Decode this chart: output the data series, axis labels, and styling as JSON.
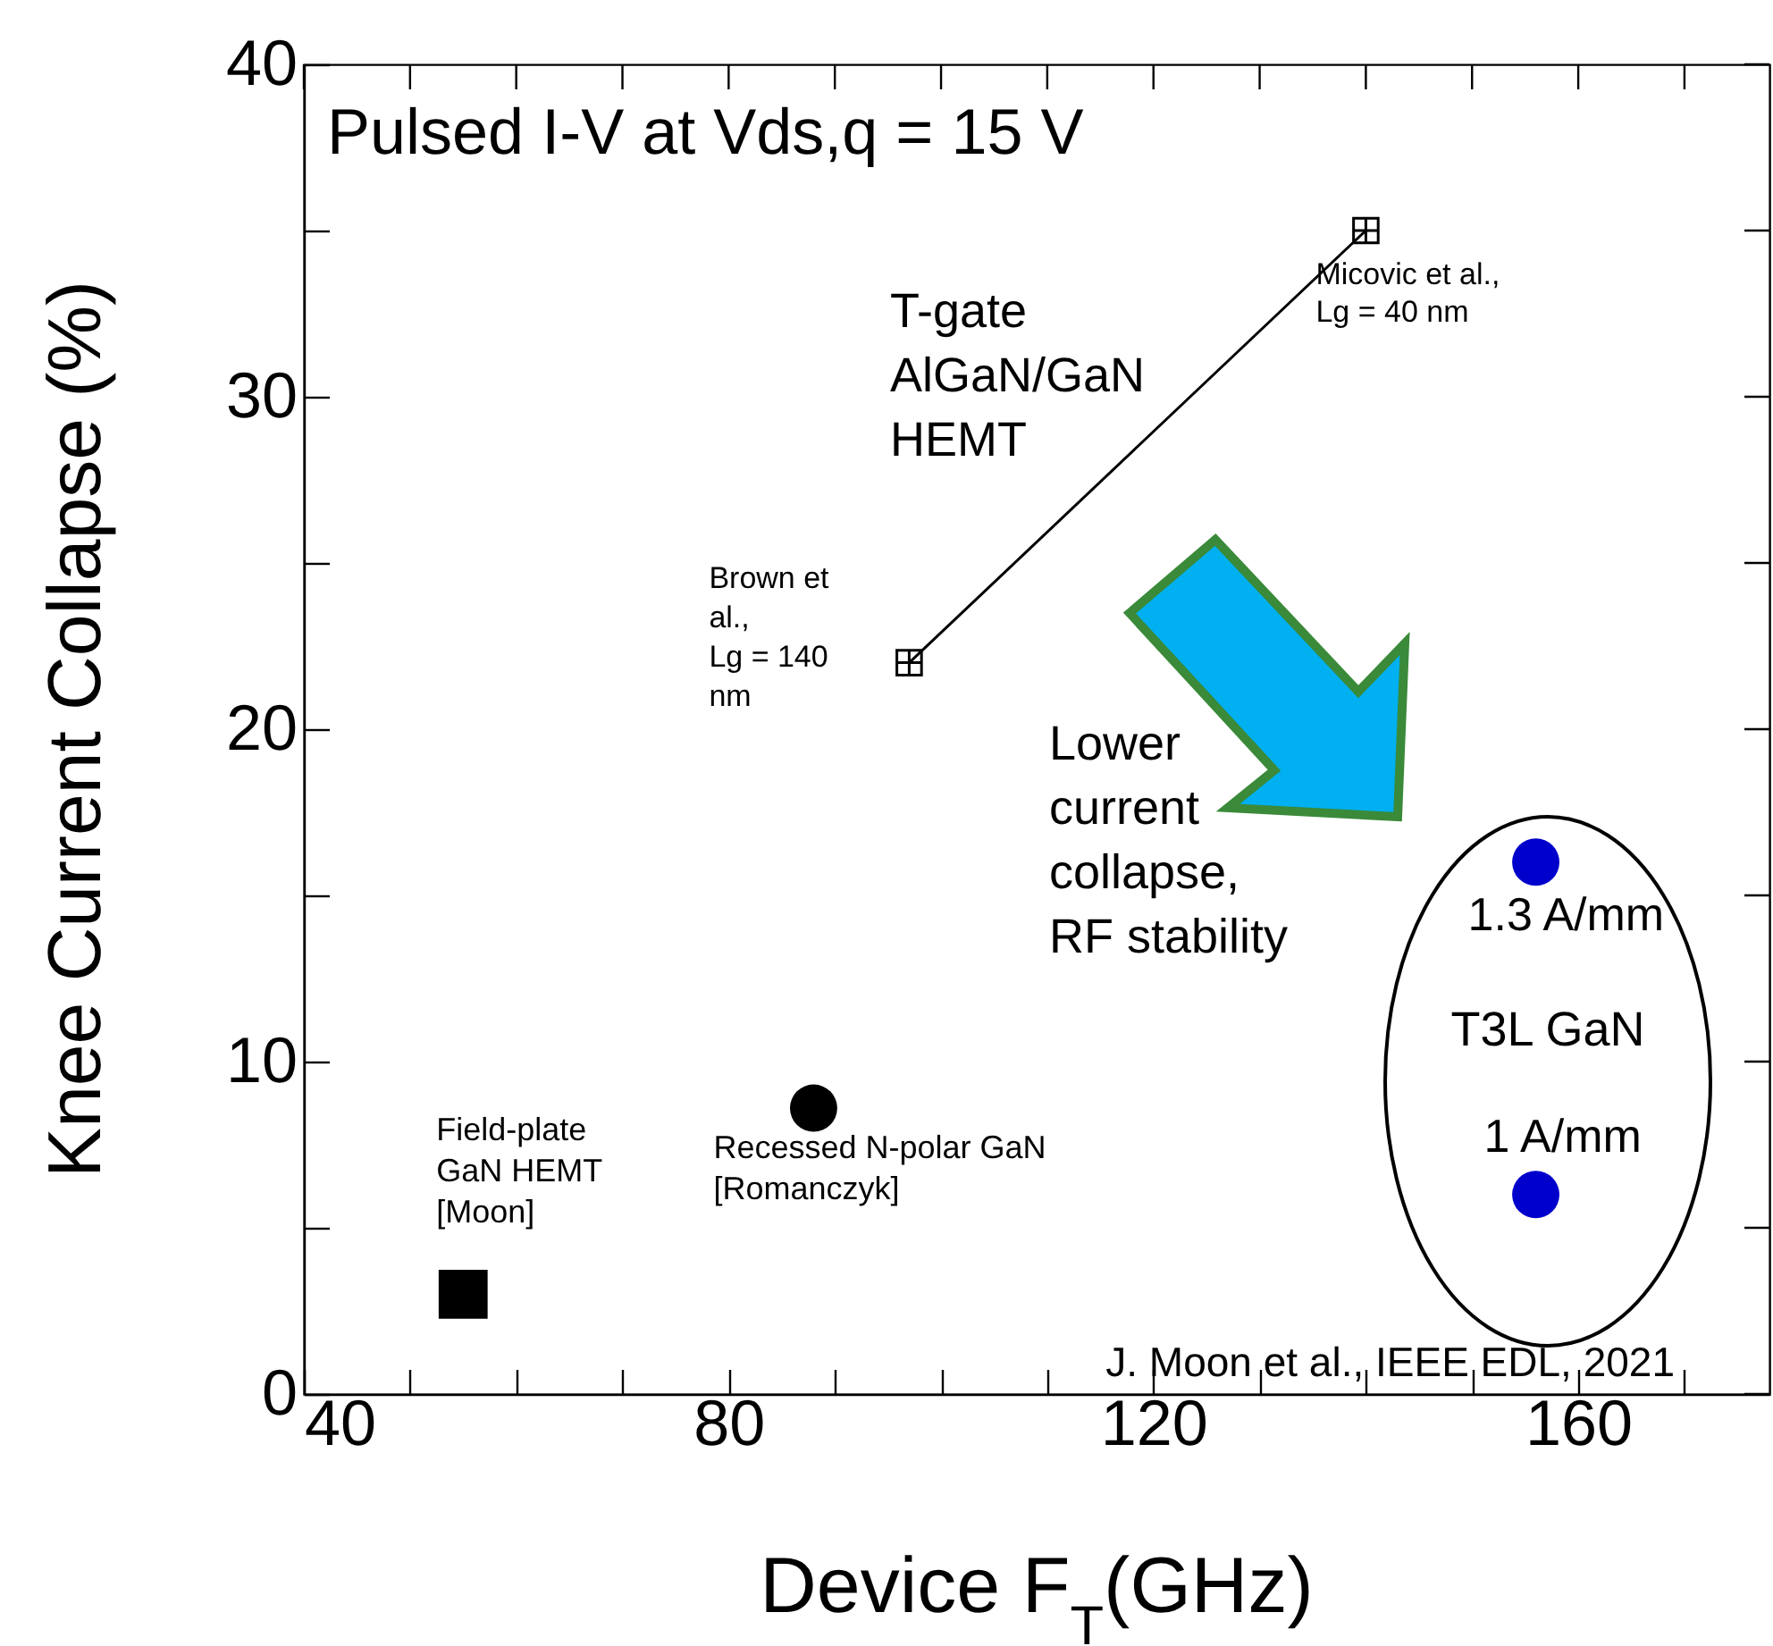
{
  "chart_data": {
    "type": "scatter",
    "xlabel": "Device F$_{T}$(GHz)",
    "ylabel": "Knee Current Collapse (%)",
    "xlim": [
      40,
      178
    ],
    "ylim": [
      0,
      40
    ],
    "xticks": [
      40,
      {
        "value": 50,
        "label": null
      },
      {
        "value": 60,
        "label": null
      },
      {
        "value": 70,
        "label": null
      },
      80,
      {
        "value": 90,
        "label": null
      },
      {
        "value": 100,
        "label": null
      },
      {
        "value": 110,
        "label": null
      },
      120,
      {
        "value": 130,
        "label": null
      },
      {
        "value": 140,
        "label": null
      },
      {
        "value": 150,
        "label": null
      },
      160,
      {
        "value": 170,
        "label": null
      }
    ],
    "yticks": [
      0,
      {
        "value": 5,
        "label": null
      },
      10,
      {
        "value": 15,
        "label": null
      },
      20,
      {
        "value": 25,
        "label": null
      },
      30,
      {
        "value": 35,
        "label": null
      },
      40
    ],
    "grid": false,
    "series": [
      {
        "marker": "square",
        "color": "#000000",
        "x": [
          55
        ],
        "values": [
          3
        ]
      },
      {
        "marker": "circle",
        "color": "#000000",
        "x": [
          88
        ],
        "values": [
          8.6
        ]
      },
      {
        "marker": "cross",
        "color": "#000000",
        "x": [
          97
        ],
        "values": [
          22
        ]
      },
      {
        "marker": "cross",
        "color": "#000000",
        "x": [
          140
        ],
        "values": [
          35
        ]
      },
      {
        "type": "line",
        "marker": "none",
        "color": "#000000",
        "x": [
          97,
          140
        ],
        "values": [
          22,
          35
        ]
      },
      {
        "marker": "circle",
        "color": "#0000cc",
        "x": [
          156,
          156
        ],
        "values": [
          16,
          6
        ]
      }
    ],
    "annotations": [
      "Pulsed I-V at Vds,q = 15 V",
      "T-gate\nAlGaN/GaN\nHEMT",
      "Lower\ncurrent\ncollapse,\nRF stability",
      "T3L GaN",
      "J. Moon et al., IEEE EDL, 2021",
      {
        "text": "Micovic et al.,\nLg = 40 nm",
        "x": 140,
        "y": 35
      },
      {
        "text": "Brown et\nal.,\nLg = 140\nnm",
        "x": 97,
        "y": 22
      },
      {
        "text": "Field-plate\nGaN HEMT\n[Moon]",
        "x": 55,
        "y": 3
      },
      {
        "text": "Recessed N-polar GaN\n[Romanczyk]",
        "x": 88,
        "y": 8.6
      },
      {
        "text": "1.3 A/mm",
        "x": 156,
        "y": 16
      },
      {
        "text": "1 A/mm",
        "x": 156,
        "y": 6
      }
    ]
  }
}
